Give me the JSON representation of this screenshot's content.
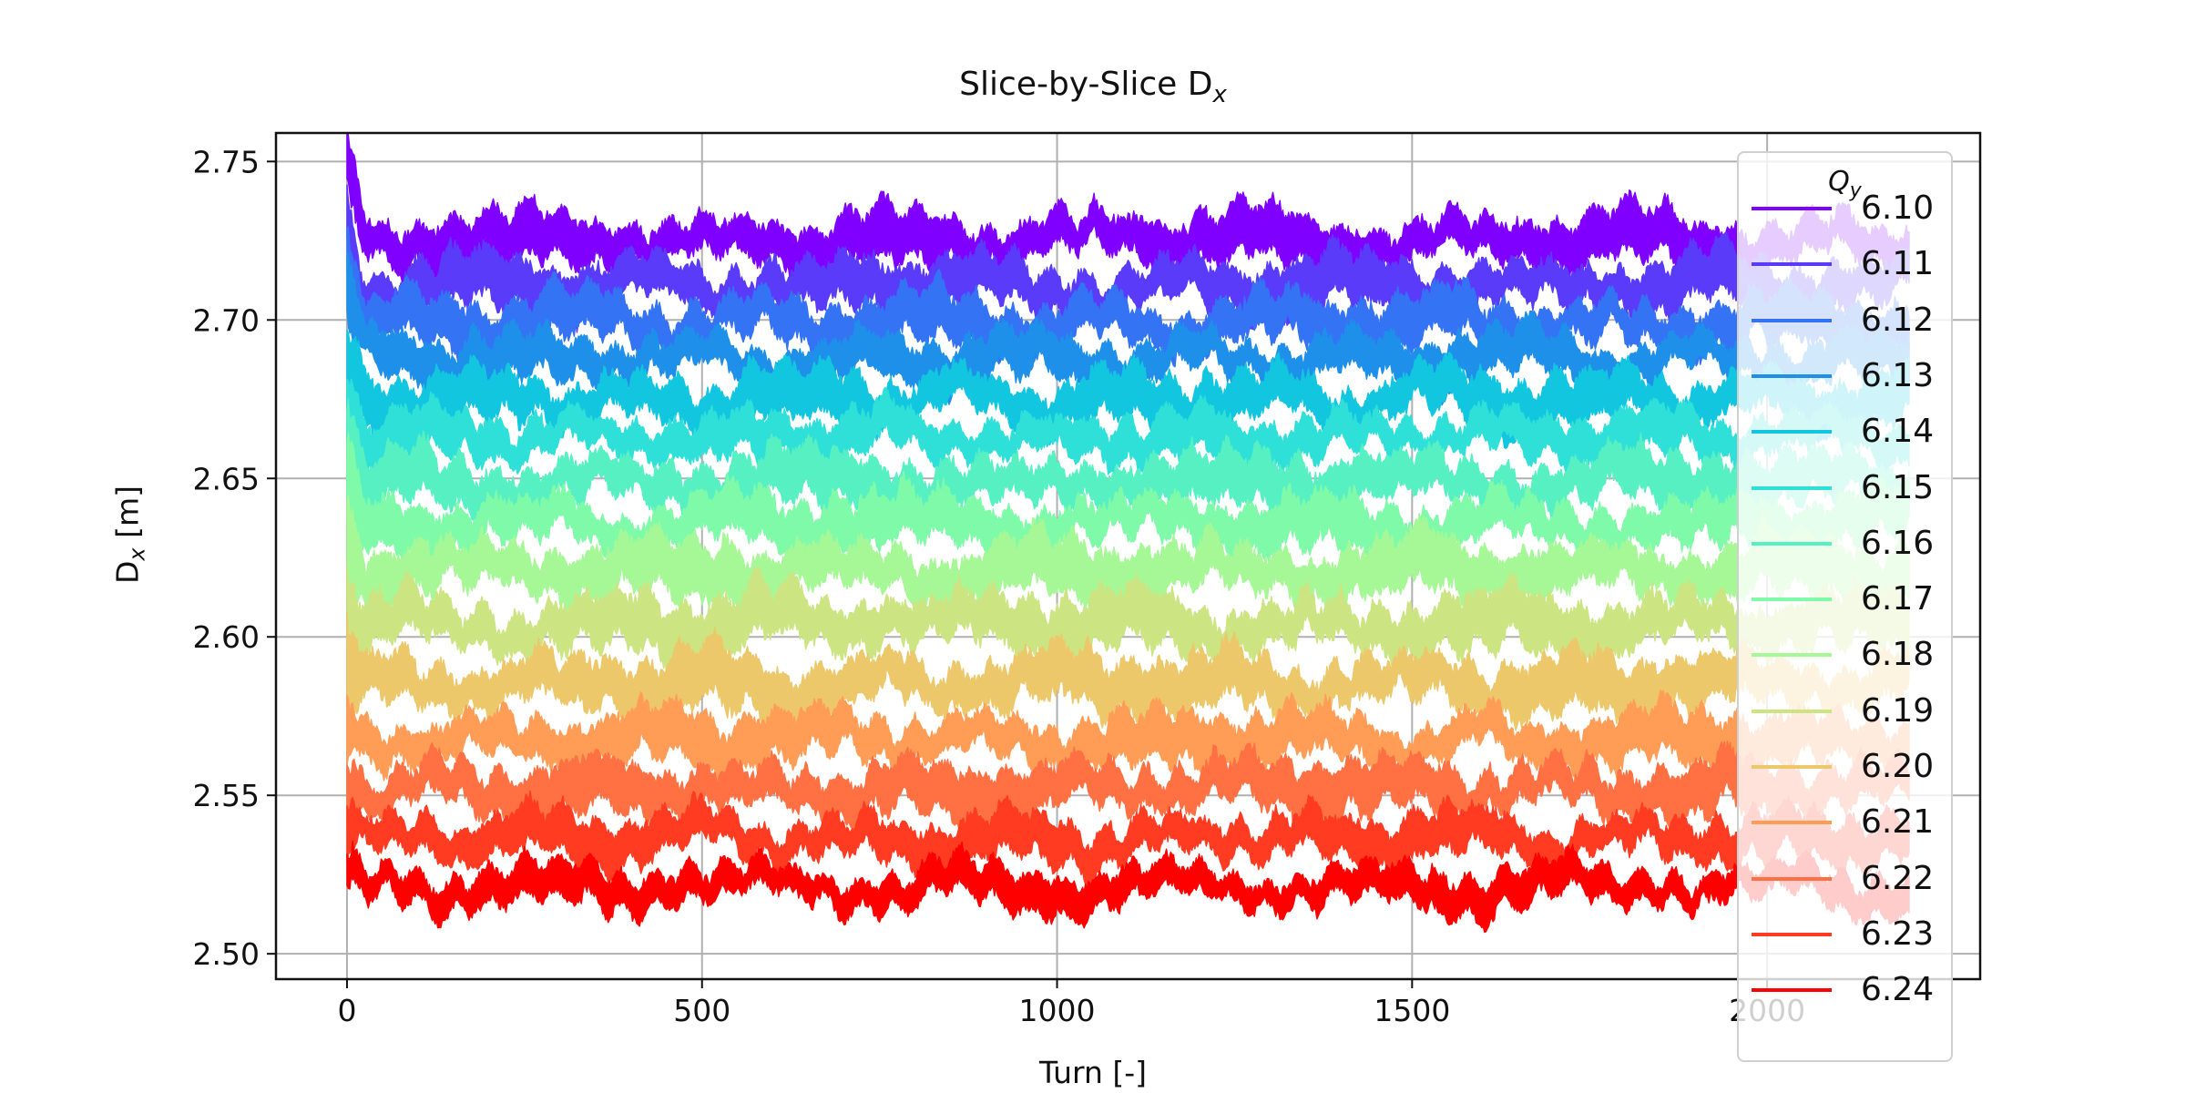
{
  "chart_data": {
    "type": "line",
    "title": "Slice-by-Slice D",
    "title_subscript": "x",
    "xlabel": "Turn [-]",
    "ylabel": "D",
    "ylabel_subscript": "x",
    "ylabel_unit": " [m]",
    "xlim": [
      -100,
      2300
    ],
    "ylim": [
      2.492,
      2.759
    ],
    "xticks": [
      0,
      500,
      1000,
      1500,
      2000
    ],
    "yticks": [
      2.5,
      2.55,
      2.6,
      2.65,
      2.7,
      2.75
    ],
    "ytick_labels": [
      "2.50",
      "2.55",
      "2.60",
      "2.65",
      "2.70",
      "2.75"
    ],
    "grid": true,
    "legend_title": "Q",
    "legend_title_subscript": "y",
    "legend_position": "right",
    "x_range": [
      0,
      2200
    ],
    "series": [
      {
        "name": "6.10",
        "color": "#8000ff",
        "mean": 2.725,
        "band": 0.008,
        "initial": 2.745
      },
      {
        "name": "6.11",
        "color": "#5a3bfa",
        "mean": 2.711,
        "band": 0.008,
        "initial": 2.733
      },
      {
        "name": "6.12",
        "color": "#3473f3",
        "mean": 2.699,
        "band": 0.008,
        "initial": 2.722
      },
      {
        "name": "6.13",
        "color": "#1e90ea",
        "mean": 2.688,
        "band": 0.007,
        "initial": 2.71
      },
      {
        "name": "6.14",
        "color": "#12c6e0",
        "mean": 2.675,
        "band": 0.008,
        "initial": 2.69
      },
      {
        "name": "6.15",
        "color": "#2ee0d8",
        "mean": 2.663,
        "band": 0.007,
        "initial": 2.676
      },
      {
        "name": "6.16",
        "color": "#56f0c2",
        "mean": 2.649,
        "band": 0.008,
        "initial": 2.66
      },
      {
        "name": "6.17",
        "color": "#7ffaa8",
        "mean": 2.636,
        "band": 0.008,
        "initial": 2.645
      },
      {
        "name": "6.18",
        "color": "#a6f897",
        "mean": 2.621,
        "band": 0.009,
        "initial": 2.63
      },
      {
        "name": "6.19",
        "color": "#cce582",
        "mean": 2.604,
        "band": 0.009,
        "initial": 2.61
      },
      {
        "name": "6.20",
        "color": "#edc86b",
        "mean": 2.585,
        "band": 0.009,
        "initial": 2.59
      },
      {
        "name": "6.21",
        "color": "#ff9d57",
        "mean": 2.568,
        "band": 0.008,
        "initial": 2.57
      },
      {
        "name": "6.22",
        "color": "#ff7043",
        "mean": 2.552,
        "band": 0.008,
        "initial": 2.555
      },
      {
        "name": "6.23",
        "color": "#ff3b22",
        "mean": 2.537,
        "band": 0.007,
        "initial": 2.538
      },
      {
        "name": "6.24",
        "color": "#ff0000",
        "mean": 2.521,
        "band": 0.006,
        "initial": 2.522
      }
    ]
  }
}
